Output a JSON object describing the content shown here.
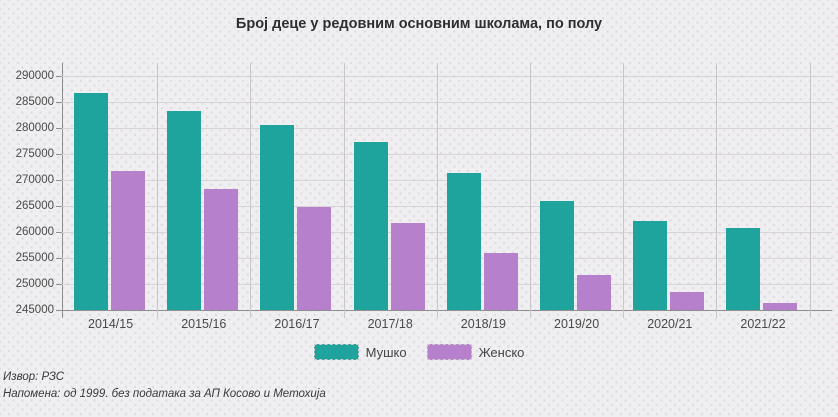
{
  "chart_data": {
    "type": "bar",
    "title": "Број деце у редовним основним школама, по полу",
    "categories": [
      "2014/15",
      "2015/16",
      "2016/17",
      "2017/18",
      "2018/19",
      "2019/20",
      "2020/21",
      "2021/22"
    ],
    "series": [
      {
        "name": "Мушко",
        "color": "#1fa49d",
        "values": [
          286800,
          283200,
          280500,
          277300,
          271400,
          265900,
          262100,
          260700
        ]
      },
      {
        "name": "Женско",
        "color": "#b680cd",
        "values": [
          271700,
          268200,
          264900,
          261800,
          256000,
          251700,
          248400,
          246400
        ]
      }
    ],
    "yticks": [
      245000,
      250000,
      255000,
      260000,
      265000,
      270000,
      275000,
      280000,
      285000,
      290000
    ],
    "ylim": [
      245000,
      292500
    ],
    "xlabel": "",
    "ylabel": "",
    "grid": true,
    "legend_position": "bottom",
    "source": "Извор: РЗС",
    "note": "Напомена: од 1999. без података за АП Косово и Метохија"
  },
  "colors": {
    "background": "#efeef0",
    "grid_horizontal": "#d7d4d7",
    "grid_vertical": "#c9c6c9",
    "axis": "#8f8f8f",
    "male": "#1fa49d",
    "female": "#b680cd"
  }
}
